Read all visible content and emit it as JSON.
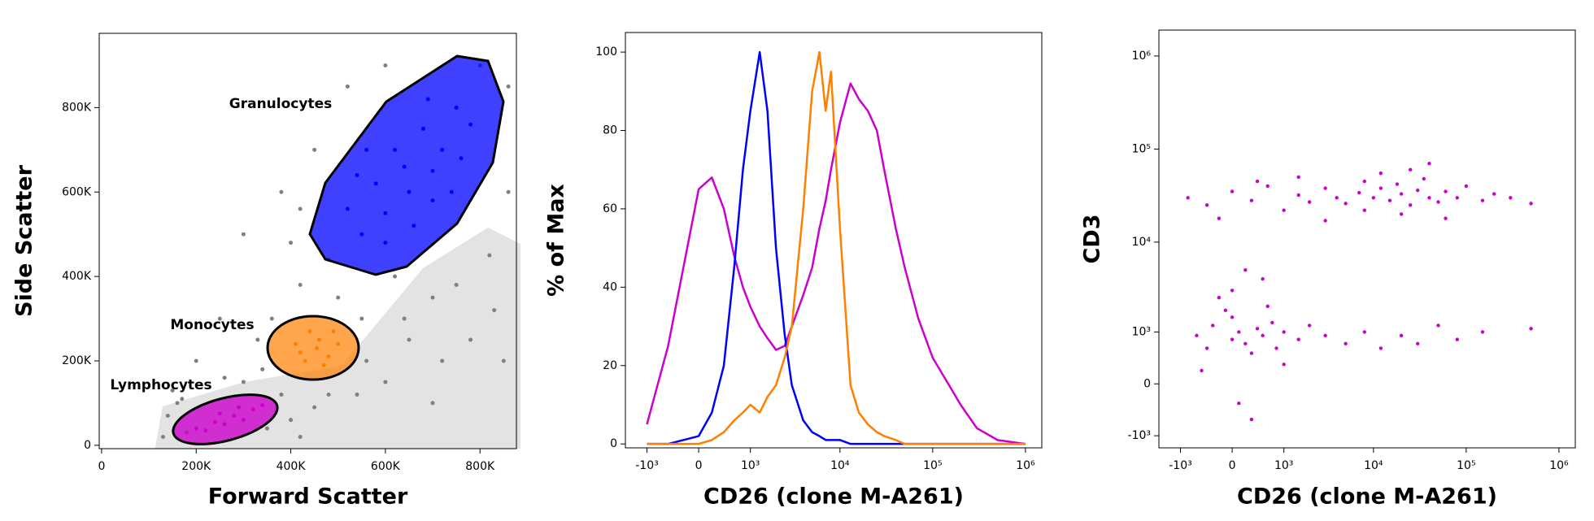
{
  "chart_data": [
    {
      "type": "scatter",
      "x_label": "Forward Scatter",
      "y_label": "Side Scatter",
      "xscale": "linear",
      "yscale": "linear",
      "xlim": [
        -5000,
        877000
      ],
      "ylim": [
        -8000,
        976000
      ],
      "xticks": [
        0,
        {
          "value": 200000,
          "label": "200K"
        },
        {
          "value": 400000,
          "label": "400K"
        },
        {
          "value": 600000,
          "label": "600K"
        },
        {
          "value": 800000,
          "label": "800K"
        }
      ],
      "yticks": [
        0,
        {
          "value": 200000,
          "label": "200K"
        },
        {
          "value": 400000,
          "label": "400K"
        },
        {
          "value": 600000,
          "label": "600K"
        },
        {
          "value": 800000,
          "label": "800K"
        }
      ],
      "series": [
        {
          "color": "#808080",
          "x": [
            130000,
            140000,
            160000,
            180000,
            170000,
            350000,
            380000,
            400000,
            420000,
            450000,
            300000,
            360000,
            420000,
            500000,
            550000,
            700000,
            780000,
            850000,
            600000,
            480000,
            700000,
            820000,
            860000,
            860000,
            520000,
            450000,
            380000,
            300000,
            250000,
            200000,
            150000,
            400000,
            650000,
            800000,
            600000,
            420000,
            330000,
            560000,
            750000,
            830000,
            480000,
            620000,
            260000,
            340000,
            540000,
            640000,
            720000
          ],
          "y": [
            20000,
            70000,
            100000,
            30000,
            110000,
            40000,
            120000,
            60000,
            20000,
            90000,
            150000,
            300000,
            380000,
            350000,
            300000,
            350000,
            250000,
            200000,
            150000,
            120000,
            100000,
            450000,
            600000,
            850000,
            850000,
            700000,
            600000,
            500000,
            300000,
            200000,
            130000,
            480000,
            250000,
            900000,
            900000,
            560000,
            250000,
            200000,
            380000,
            320000,
            440000,
            400000,
            160000,
            180000,
            120000,
            300000,
            200000
          ]
        },
        {
          "name": "Granulocytes",
          "color": "#0000ff",
          "x": [
            550000,
            600000,
            650000,
            700000,
            620000,
            680000,
            750000,
            720000,
            580000,
            520000,
            660000,
            700000,
            760000,
            780000,
            640000,
            600000,
            540000,
            690000,
            740000,
            560000
          ],
          "y": [
            500000,
            550000,
            600000,
            650000,
            700000,
            750000,
            800000,
            700000,
            620000,
            560000,
            520000,
            580000,
            680000,
            760000,
            660000,
            480000,
            640000,
            820000,
            600000,
            700000
          ]
        },
        {
          "name": "Monocytes",
          "color": "#ff8000",
          "x": [
            420000,
            460000,
            480000,
            440000,
            410000,
            470000,
            500000,
            430000,
            455000,
            490000
          ],
          "y": [
            220000,
            250000,
            210000,
            270000,
            240000,
            190000,
            240000,
            200000,
            230000,
            270000
          ]
        },
        {
          "name": "Lymphocytes",
          "color": "#cc00cc",
          "x": [
            200000,
            240000,
            280000,
            320000,
            260000,
            300000,
            220000,
            340000,
            250000,
            290000
          ],
          "y": [
            40000,
            55000,
            70000,
            85000,
            50000,
            60000,
            35000,
            95000,
            75000,
            90000
          ]
        }
      ]
    },
    {
      "type": "line",
      "x_label": "CD26 (clone M-A261)",
      "y_label": "% of Max",
      "xscale": "biex",
      "yscale": "linear",
      "xlim": [
        -1800,
        1500000
      ],
      "ylim": [
        -1,
        105
      ],
      "xticks": [
        {
          "value": -1000,
          "label": "-10³"
        },
        0,
        {
          "value": 1000,
          "label": "10³"
        },
        {
          "value": 10000,
          "label": "10⁴"
        },
        {
          "value": 100000,
          "label": "10⁵"
        },
        {
          "value": 1000000,
          "label": "10⁶"
        }
      ],
      "yticks": [
        0,
        20,
        40,
        60,
        80,
        100
      ],
      "x": [
        -1000,
        -500,
        0,
        200,
        400,
        600,
        800,
        1000,
        1300,
        1600,
        2000,
        2500,
        3000,
        4000,
        5000,
        6000,
        7000,
        8000,
        10000,
        13000,
        16000,
        20000,
        25000,
        30000,
        40000,
        50000,
        70000,
        100000,
        150000,
        200000,
        300000,
        500000,
        1000000
      ],
      "series": [
        {
          "color": "#cc00cc",
          "values": [
            5,
            25,
            65,
            68,
            60,
            48,
            40,
            35,
            30,
            27,
            24,
            25,
            30,
            38,
            45,
            55,
            62,
            70,
            82,
            92,
            88,
            85,
            80,
            70,
            55,
            45,
            32,
            22,
            15,
            10,
            4,
            1,
            0
          ]
        },
        {
          "color": "#0000ff",
          "values": [
            0,
            0,
            2,
            8,
            20,
            45,
            70,
            85,
            100,
            85,
            50,
            28,
            15,
            6,
            3,
            2,
            1,
            1,
            1,
            0,
            0,
            0,
            0,
            0,
            0,
            0,
            0,
            0,
            0,
            0,
            0,
            0,
            0
          ]
        },
        {
          "color": "#ff8000",
          "values": [
            0,
            0,
            0,
            1,
            3,
            6,
            8,
            10,
            8,
            12,
            15,
            22,
            30,
            60,
            90,
            100,
            85,
            95,
            55,
            15,
            8,
            5,
            3,
            2,
            1,
            0,
            0,
            0,
            0,
            0,
            0,
            0,
            0
          ]
        }
      ]
    },
    {
      "type": "scatter",
      "x_label": "CD26 (clone M-A261)",
      "y_label": "CD3",
      "xscale": "biex",
      "yscale": "biex",
      "xlim": [
        -1800,
        1500000
      ],
      "ylim": [
        -1400,
        1900000
      ],
      "xticks": [
        {
          "value": -1000,
          "label": "-10³"
        },
        0,
        {
          "value": 1000,
          "label": "10³"
        },
        {
          "value": 10000,
          "label": "10⁴"
        },
        {
          "value": 100000,
          "label": "10⁵"
        },
        {
          "value": 1000000,
          "label": "10⁶"
        }
      ],
      "yticks": [
        {
          "value": -1000,
          "label": "-10³"
        },
        0,
        {
          "value": 1000,
          "label": "10³"
        },
        {
          "value": 10000,
          "label": "10⁴"
        },
        {
          "value": 100000,
          "label": "10⁵"
        },
        {
          "value": 1000000,
          "label": "10⁶"
        }
      ],
      "series": [
        {
          "color": "#cc00cc",
          "x": [
            -800,
            -400,
            0,
            300,
            600,
            1000,
            1500,
            2000,
            3000,
            4000,
            5000,
            7000,
            8000,
            10000,
            12000,
            15000,
            18000,
            20000,
            25000,
            30000,
            35000,
            40000,
            50000,
            60000,
            80000,
            100000,
            150000,
            200000,
            300000,
            500000,
            12000,
            20000,
            8000,
            400,
            -200,
            25000,
            60000,
            3000,
            1500,
            40000,
            -600,
            -300,
            0,
            0,
            200,
            400,
            500,
            700,
            800,
            1000,
            -100,
            300,
            -400,
            600,
            100,
            1500,
            2000,
            3000,
            5000,
            8000,
            12000,
            20000,
            30000,
            50000,
            80000,
            150000,
            0,
            200,
            -200,
            500,
            100,
            -500,
            300,
            1000,
            500000
          ],
          "y": [
            30000,
            25000,
            35000,
            28000,
            40000,
            22000,
            32000,
            27000,
            38000,
            30000,
            26000,
            34000,
            45000,
            30000,
            38000,
            28000,
            42000,
            33000,
            25000,
            36000,
            48000,
            30000,
            27000,
            35000,
            30000,
            40000,
            28000,
            33000,
            30000,
            26000,
            55000,
            20000,
            22000,
            45000,
            18000,
            60000,
            18000,
            17000,
            50000,
            70000,
            900,
            1200,
            800,
            1500,
            700,
            1100,
            900,
            1300,
            600,
            1000,
            1800,
            500,
            600,
            2000,
            1000,
            800,
            1200,
            900,
            700,
            1000,
            600,
            900,
            700,
            1200,
            800,
            1000,
            3000,
            5000,
            2500,
            4000,
            -300,
            200,
            -600,
            300,
            1100
          ]
        }
      ]
    }
  ]
}
